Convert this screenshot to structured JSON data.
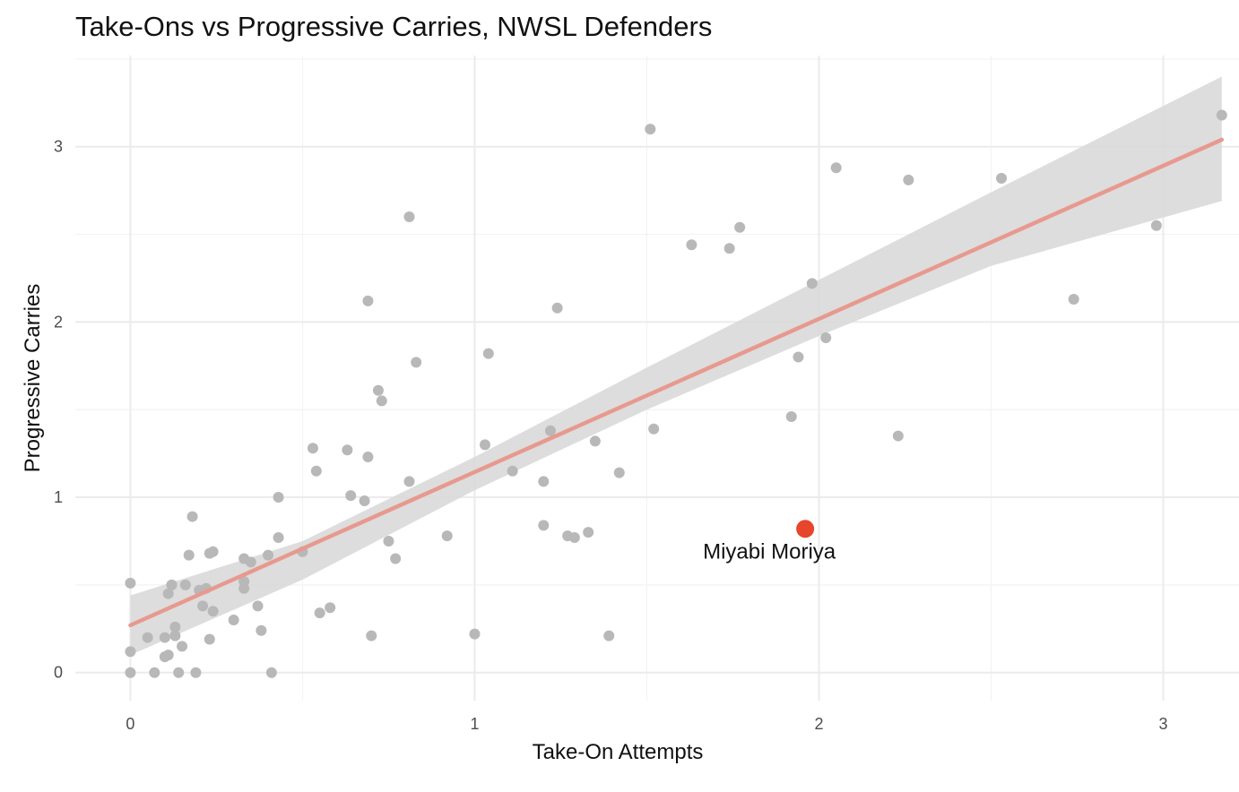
{
  "chart_data": {
    "type": "scatter",
    "title": "Take-Ons vs Progressive Carries, NWSL Defenders",
    "xlabel": "Take-On Attempts",
    "ylabel": "Progressive Carries",
    "xlim": [
      -0.16,
      3.22
    ],
    "ylim": [
      -0.16,
      3.52
    ],
    "xticks": [
      0,
      1,
      2,
      3
    ],
    "yticks": [
      0,
      1,
      2,
      3
    ],
    "grid": true,
    "colors": {
      "points": "#b8b8b8",
      "highlight": "#e8452d",
      "trend_line": "#e8998f",
      "confidence_band": "#d9d9d9",
      "grid_major": "#ebebeb",
      "grid_minor": "#f3f3f3"
    },
    "points": [
      [
        0.0,
        0.51
      ],
      [
        0.0,
        0.12
      ],
      [
        0.0,
        0.0
      ],
      [
        0.05,
        0.2
      ],
      [
        0.07,
        0.0
      ],
      [
        0.1,
        0.09
      ],
      [
        0.1,
        0.2
      ],
      [
        0.11,
        0.1
      ],
      [
        0.11,
        0.45
      ],
      [
        0.12,
        0.5
      ],
      [
        0.12,
        0.5
      ],
      [
        0.13,
        0.21
      ],
      [
        0.13,
        0.26
      ],
      [
        0.14,
        0.0
      ],
      [
        0.15,
        0.15
      ],
      [
        0.16,
        0.5
      ],
      [
        0.17,
        0.67
      ],
      [
        0.18,
        0.89
      ],
      [
        0.19,
        0.0
      ],
      [
        0.2,
        0.47
      ],
      [
        0.21,
        0.38
      ],
      [
        0.22,
        0.48
      ],
      [
        0.23,
        0.68
      ],
      [
        0.23,
        0.19
      ],
      [
        0.24,
        0.35
      ],
      [
        0.24,
        0.69
      ],
      [
        0.3,
        0.3
      ],
      [
        0.33,
        0.65
      ],
      [
        0.33,
        0.52
      ],
      [
        0.33,
        0.48
      ],
      [
        0.35,
        0.63
      ],
      [
        0.37,
        0.38
      ],
      [
        0.38,
        0.24
      ],
      [
        0.4,
        0.67
      ],
      [
        0.41,
        0.0
      ],
      [
        0.43,
        1.0
      ],
      [
        0.43,
        0.77
      ],
      [
        0.5,
        0.69
      ],
      [
        0.53,
        1.28
      ],
      [
        0.54,
        1.15
      ],
      [
        0.55,
        0.34
      ],
      [
        0.58,
        0.37
      ],
      [
        0.63,
        1.27
      ],
      [
        0.64,
        1.01
      ],
      [
        0.68,
        0.98
      ],
      [
        0.69,
        1.23
      ],
      [
        0.69,
        2.12
      ],
      [
        0.7,
        0.21
      ],
      [
        0.72,
        1.61
      ],
      [
        0.73,
        1.55
      ],
      [
        0.75,
        0.75
      ],
      [
        0.77,
        0.65
      ],
      [
        0.81,
        1.09
      ],
      [
        0.81,
        2.6
      ],
      [
        0.83,
        1.77
      ],
      [
        0.92,
        0.78
      ],
      [
        1.0,
        0.22
      ],
      [
        1.03,
        1.3
      ],
      [
        1.04,
        1.82
      ],
      [
        1.11,
        1.15
      ],
      [
        1.2,
        0.84
      ],
      [
        1.2,
        1.09
      ],
      [
        1.22,
        1.38
      ],
      [
        1.24,
        2.08
      ],
      [
        1.27,
        0.78
      ],
      [
        1.29,
        0.77
      ],
      [
        1.33,
        0.8
      ],
      [
        1.35,
        1.32
      ],
      [
        1.39,
        0.21
      ],
      [
        1.42,
        1.14
      ],
      [
        1.51,
        3.1
      ],
      [
        1.52,
        1.39
      ],
      [
        1.63,
        2.44
      ],
      [
        1.74,
        2.42
      ],
      [
        1.77,
        2.54
      ],
      [
        1.92,
        1.46
      ],
      [
        1.94,
        1.8
      ],
      [
        1.98,
        2.22
      ],
      [
        2.02,
        1.91
      ],
      [
        2.05,
        2.88
      ],
      [
        2.23,
        1.35
      ],
      [
        2.26,
        2.81
      ],
      [
        2.53,
        2.82
      ],
      [
        2.74,
        2.13
      ],
      [
        2.98,
        2.55
      ],
      [
        3.17,
        3.18
      ]
    ],
    "highlight": {
      "label": "Miyabi Moriya",
      "x": 1.96,
      "y": 0.82
    },
    "trend": {
      "x": [
        0,
        3.17
      ],
      "y": [
        0.27,
        3.04
      ],
      "band_x": [
        0,
        0.5,
        1.0,
        1.5,
        2.0,
        2.5,
        3.17
      ],
      "band_upper": [
        0.44,
        0.75,
        1.23,
        1.74,
        2.24,
        2.74,
        3.4
      ],
      "band_lower": [
        0.1,
        0.53,
        1.04,
        1.5,
        1.92,
        2.32,
        2.69
      ]
    }
  }
}
